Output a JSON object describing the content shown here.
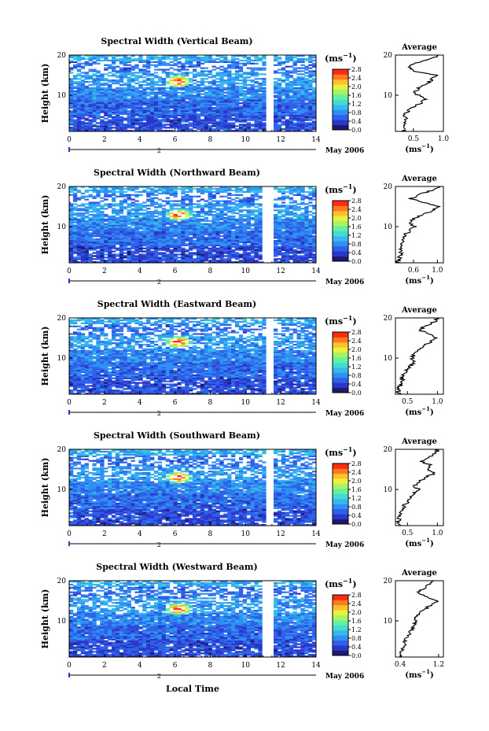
{
  "figure": {
    "x_axis_label": "Local Time",
    "date_label": "May 2006",
    "colorbar_unit_text": "(ms",
    "colorbar_unit_exp": "−1",
    "colorbar_unit_close": ")",
    "y_axis_label": "Height (km)",
    "avg_title": "Average",
    "avg_xlabel_text": "(ms",
    "avg_xlabel_exp": "−1",
    "avg_xlabel_close": ")"
  },
  "colors": {
    "background": "#ffffff",
    "frame": "#000000",
    "colormap": [
      "#1b1a70",
      "#2a37c8",
      "#2f60e8",
      "#2f8ff2",
      "#37b8ec",
      "#45dbd2",
      "#63f0a0",
      "#a6f465",
      "#e7f23f",
      "#ffc02b",
      "#ff7a1c",
      "#ff2a12"
    ]
  },
  "chart_data": [
    {
      "type": "heatmap",
      "title": "Spectral Width (Vertical Beam)",
      "xlabel": "",
      "ylabel": "Height (km)",
      "xlim": [
        0,
        14
      ],
      "ylim": [
        1,
        20
      ],
      "x_ticks": [
        0,
        2,
        4,
        6,
        8,
        10,
        12,
        14
      ],
      "y_ticks": [
        10,
        20
      ],
      "date_marker": 2,
      "data_gap": [
        11.1,
        11.6
      ],
      "colorbar": {
        "ticks": [
          "0.0",
          "0.4",
          "0.8",
          "1.2",
          "1.6",
          "2.0",
          "2.4",
          "2.8"
        ],
        "range": [
          0,
          2.8
        ]
      },
      "hotspot": {
        "time": 6.2,
        "height": 13.5,
        "value": 2.8
      },
      "average_profile": {
        "xlim": [
          0.2,
          1.0
        ],
        "x_ticks": [
          "0.5",
          "1.0"
        ],
        "heights": [
          1,
          2,
          3,
          4,
          5,
          6,
          7,
          8,
          9,
          10,
          11,
          12,
          13,
          14,
          15,
          16,
          17,
          18,
          19,
          20
        ],
        "values": [
          0.35,
          0.33,
          0.34,
          0.38,
          0.36,
          0.4,
          0.48,
          0.62,
          0.7,
          0.58,
          0.52,
          0.6,
          0.75,
          0.82,
          0.88,
          0.5,
          0.42,
          0.55,
          0.8,
          0.92
        ]
      }
    },
    {
      "type": "heatmap",
      "title": "Spectral Width (Northward Beam)",
      "xlabel": "",
      "ylabel": "Height (km)",
      "xlim": [
        0,
        14
      ],
      "ylim": [
        1,
        20
      ],
      "x_ticks": [
        0,
        2,
        4,
        6,
        8,
        10,
        12,
        14
      ],
      "y_ticks": [
        10,
        20
      ],
      "date_marker": 2,
      "data_gap": [
        11.0,
        11.5
      ],
      "colorbar": {
        "ticks": [
          "0.0",
          "0.4",
          "0.8",
          "1.2",
          "1.6",
          "2.0",
          "2.4",
          "2.8"
        ],
        "range": [
          0,
          2.8
        ]
      },
      "hotspot": {
        "time": 6.2,
        "height": 13.0,
        "value": 2.0
      },
      "average_profile": {
        "xlim": [
          0.3,
          1.1
        ],
        "x_ticks": [
          "0.6",
          "1.0"
        ],
        "heights": [
          1,
          2,
          3,
          4,
          5,
          6,
          7,
          8,
          9,
          10,
          11,
          12,
          13,
          14,
          15,
          16,
          17,
          18,
          19,
          20
        ],
        "values": [
          0.35,
          0.36,
          0.38,
          0.4,
          0.38,
          0.4,
          0.42,
          0.45,
          0.55,
          0.62,
          0.55,
          0.6,
          0.78,
          0.92,
          1.02,
          0.8,
          0.55,
          0.7,
          0.9,
          1.05
        ]
      }
    },
    {
      "type": "heatmap",
      "title": "Spectral Width (Eastward Beam)",
      "xlabel": "",
      "ylabel": "Height (km)",
      "xlim": [
        0,
        14
      ],
      "ylim": [
        1,
        20
      ],
      "x_ticks": [
        0,
        2,
        4,
        6,
        8,
        10,
        12,
        14
      ],
      "y_ticks": [
        10,
        20
      ],
      "date_marker": 2,
      "data_gap": [
        11.1,
        11.6
      ],
      "colorbar": {
        "ticks": [
          "0.0",
          "0.4",
          "0.8",
          "1.2",
          "1.6",
          "2.0",
          "2.4",
          "2.8"
        ],
        "range": [
          0,
          2.8
        ]
      },
      "hotspot": {
        "time": 6.2,
        "height": 14.0,
        "value": 2.8
      },
      "average_profile": {
        "xlim": [
          0.3,
          1.1
        ],
        "x_ticks": [
          "0.5",
          "1.0"
        ],
        "heights": [
          1,
          2,
          3,
          4,
          5,
          6,
          7,
          8,
          9,
          10,
          11,
          12,
          13,
          14,
          15,
          16,
          17,
          18,
          19,
          20
        ],
        "values": [
          0.36,
          0.34,
          0.38,
          0.42,
          0.4,
          0.45,
          0.5,
          0.55,
          0.62,
          0.58,
          0.62,
          0.7,
          0.78,
          0.88,
          0.98,
          0.85,
          0.7,
          0.8,
          0.95,
          1.0
        ]
      }
    },
    {
      "type": "heatmap",
      "title": "Spectral Width (Southward Beam)",
      "xlabel": "",
      "ylabel": "Height (km)",
      "xlim": [
        0,
        14
      ],
      "ylim": [
        1,
        20
      ],
      "x_ticks": [
        0,
        2,
        4,
        6,
        8,
        10,
        12,
        14
      ],
      "y_ticks": [
        10,
        20
      ],
      "date_marker": 2,
      "data_gap": [
        11.1,
        11.6
      ],
      "colorbar": {
        "ticks": [
          "0.0",
          "0.4",
          "0.8",
          "1.2",
          "1.6",
          "2.0",
          "2.4",
          "2.8"
        ],
        "range": [
          0,
          2.8
        ]
      },
      "hotspot": {
        "time": 6.2,
        "height": 13.0,
        "value": 2.6
      },
      "average_profile": {
        "xlim": [
          0.3,
          1.1
        ],
        "x_ticks": [
          "0.5",
          "1.0"
        ],
        "heights": [
          1,
          2,
          3,
          4,
          5,
          6,
          7,
          8,
          9,
          10,
          11,
          12,
          13,
          14,
          15,
          16,
          17,
          18,
          19,
          20
        ],
        "values": [
          0.36,
          0.35,
          0.37,
          0.4,
          0.42,
          0.45,
          0.52,
          0.55,
          0.6,
          0.68,
          0.62,
          0.68,
          0.8,
          0.95,
          0.85,
          0.9,
          0.72,
          0.85,
          0.98,
          1.02
        ]
      }
    },
    {
      "type": "heatmap",
      "title": "Spectral Width (Westward Beam)",
      "xlabel": "Local Time",
      "ylabel": "Height (km)",
      "xlim": [
        0,
        14
      ],
      "ylim": [
        1,
        20
      ],
      "x_ticks": [
        0,
        2,
        4,
        6,
        8,
        10,
        12,
        14
      ],
      "y_ticks": [
        10,
        20
      ],
      "date_marker": 2,
      "data_gap": [
        11.0,
        11.5
      ],
      "colorbar": {
        "ticks": [
          "0.0",
          "0.4",
          "0.8",
          "1.2",
          "1.6",
          "2.0",
          "2.4",
          "2.8"
        ],
        "range": [
          0,
          2.8
        ]
      },
      "hotspot": {
        "time": 6.2,
        "height": 13.0,
        "value": 2.8
      },
      "average_profile": {
        "xlim": [
          0.3,
          1.3
        ],
        "x_ticks": [
          "0.4",
          "1.2"
        ],
        "heights": [
          1,
          2,
          3,
          4,
          5,
          6,
          7,
          8,
          9,
          10,
          11,
          12,
          13,
          14,
          15,
          16,
          17,
          18,
          19,
          20
        ],
        "values": [
          0.4,
          0.42,
          0.45,
          0.48,
          0.5,
          0.55,
          0.6,
          0.65,
          0.7,
          0.72,
          0.74,
          0.8,
          0.92,
          1.05,
          1.18,
          0.95,
          0.75,
          0.88,
          1.0,
          1.1
        ]
      }
    }
  ]
}
